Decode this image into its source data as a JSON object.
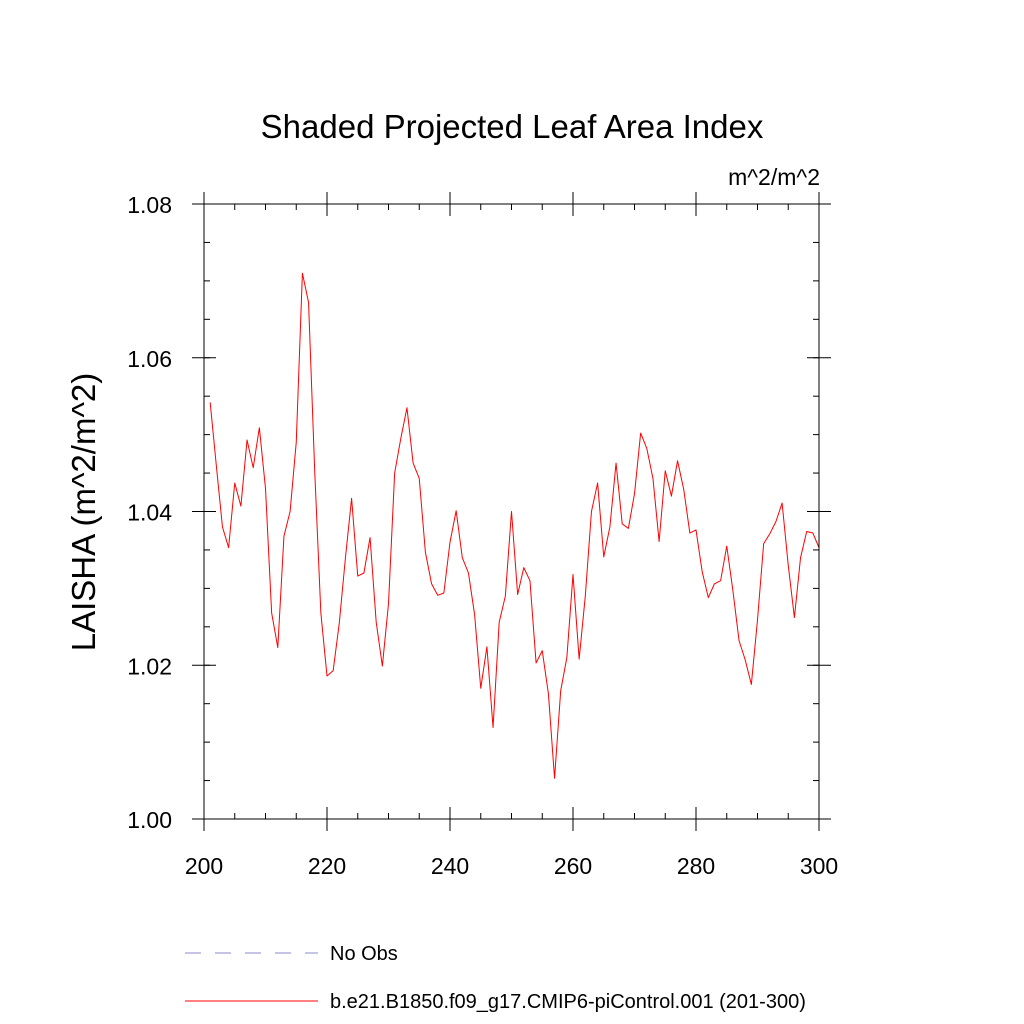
{
  "chart_data": {
    "type": "line",
    "title": "Shaded Projected Leaf Area Index",
    "units_label": "m^2/m^2",
    "ylabel": "LAISHA  (m^2/m^2)",
    "xlabel": "",
    "xlim": [
      200,
      300
    ],
    "ylim": [
      1.0,
      1.08
    ],
    "x_ticks": [
      200,
      220,
      240,
      260,
      280,
      300
    ],
    "x_tick_labels": [
      "200",
      "220",
      "240",
      "260",
      "280",
      "300"
    ],
    "y_ticks": [
      1.0,
      1.02,
      1.04,
      1.06,
      1.08
    ],
    "y_tick_labels": [
      "1.00",
      "1.02",
      "1.04",
      "1.06",
      "1.08"
    ],
    "x_minor_step": 5,
    "y_minor_step": 0.005,
    "grid": false,
    "legend_position": "bottom",
    "series": [
      {
        "name": "b.e21.B1850.f09_g17.CMIP6-piControl.001 (201-300)",
        "color": "#ff0000",
        "dash": "solid",
        "x": [
          201,
          202,
          203,
          204,
          205,
          206,
          207,
          208,
          209,
          210,
          211,
          212,
          213,
          214,
          215,
          216,
          217,
          218,
          219,
          220,
          221,
          222,
          223,
          224,
          225,
          226,
          227,
          228,
          229,
          230,
          231,
          232,
          233,
          234,
          235,
          236,
          237,
          238,
          239,
          240,
          241,
          242,
          243,
          244,
          245,
          246,
          247,
          248,
          249,
          250,
          251,
          252,
          253,
          254,
          255,
          256,
          257,
          258,
          259,
          260,
          261,
          262,
          263,
          264,
          265,
          266,
          267,
          268,
          269,
          270,
          271,
          272,
          273,
          274,
          275,
          276,
          277,
          278,
          279,
          280,
          281,
          282,
          283,
          284,
          285,
          286,
          287,
          288,
          289,
          290,
          291,
          292,
          293,
          294,
          295,
          296,
          297,
          298,
          299,
          300
        ],
        "values": [
          1.0542,
          1.046,
          1.038,
          1.0353,
          1.0437,
          1.0407,
          1.0493,
          1.0457,
          1.0509,
          1.043,
          1.0268,
          1.0223,
          1.0368,
          1.04,
          1.049,
          1.071,
          1.0672,
          1.0453,
          1.0268,
          1.0186,
          1.0193,
          1.0255,
          1.034,
          1.0417,
          1.0316,
          1.032,
          1.0366,
          1.0256,
          1.0199,
          1.028,
          1.045,
          1.0495,
          1.0535,
          1.0463,
          1.0443,
          1.0347,
          1.0306,
          1.0291,
          1.0294,
          1.036,
          1.0401,
          1.034,
          1.032,
          1.0266,
          1.017,
          1.0224,
          1.0119,
          1.0256,
          1.029,
          1.04,
          1.0292,
          1.0327,
          1.031,
          1.0203,
          1.0219,
          1.0163,
          1.0053,
          1.0167,
          1.021,
          1.0318,
          1.0208,
          1.029,
          1.04,
          1.0437,
          1.0341,
          1.038,
          1.0463,
          1.0384,
          1.0378,
          1.0423,
          1.0502,
          1.0482,
          1.0443,
          1.0361,
          1.0453,
          1.042,
          1.0466,
          1.0429,
          1.0372,
          1.0376,
          1.0322,
          1.0288,
          1.0306,
          1.031,
          1.0355,
          1.0297,
          1.0232,
          1.0207,
          1.0175,
          1.0259,
          1.0358,
          1.0371,
          1.0387,
          1.0411,
          1.033,
          1.0262,
          1.034,
          1.0374,
          1.0372,
          1.0353
        ]
      }
    ],
    "legend": [
      {
        "label": "No Obs",
        "color": "#8888cc",
        "dash": "dashed"
      },
      {
        "label": "b.e21.B1850.f09_g17.CMIP6-piControl.001 (201-300)",
        "color": "#ff0000",
        "dash": "solid"
      }
    ]
  }
}
